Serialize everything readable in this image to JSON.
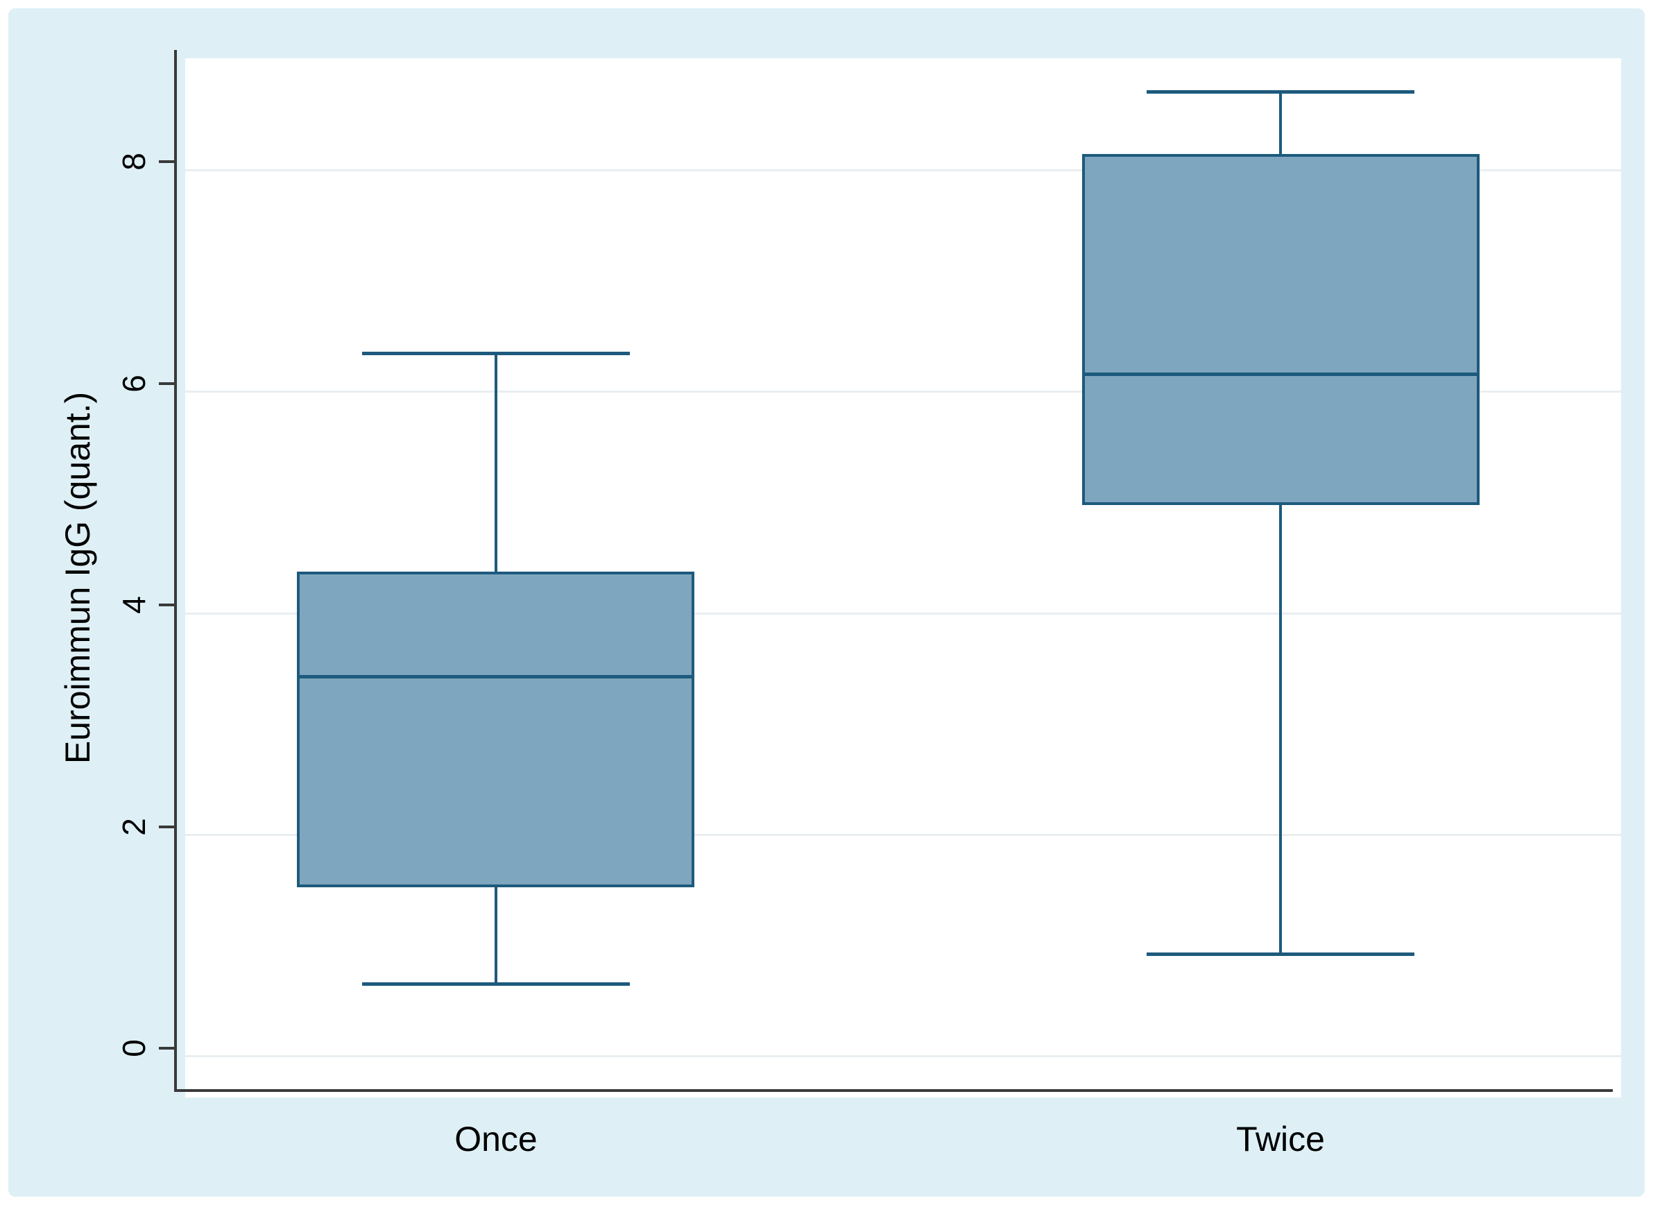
{
  "figure": {
    "page_background": "#ffffff",
    "panel_background": "#def0f6",
    "plot_background": "#ffffff"
  },
  "colors": {
    "grid": "#e9eef1",
    "axis": "#3a3a3a",
    "box_fill": "#7fa6bf",
    "box_stroke": "#1d5a7d",
    "text": "#000000"
  },
  "y_axis": {
    "title": "Euroimmun IgG (quant.)",
    "tick_labels": [
      "0",
      "2",
      "4",
      "6",
      "8"
    ]
  },
  "x_axis": {
    "category_labels": [
      "Once",
      "Twice"
    ]
  },
  "chart_data": {
    "type": "box",
    "title": "",
    "xlabel": "",
    "ylabel": "Euroimmun IgG (quant.)",
    "categories": [
      "Once",
      "Twice"
    ],
    "series": [
      {
        "name": "Once",
        "whisker_low": 0.58,
        "q1": 1.45,
        "median": 3.35,
        "q3": 4.3,
        "whisker_high": 6.27
      },
      {
        "name": "Twice",
        "whisker_low": 0.85,
        "q1": 4.9,
        "median": 6.08,
        "q3": 8.07,
        "whisker_high": 8.63
      }
    ],
    "yticks": [
      0,
      2,
      4,
      6,
      8
    ],
    "ylim": [
      -0.37,
      9.01
    ],
    "grid": true,
    "legend": false,
    "legend_position": "none"
  }
}
